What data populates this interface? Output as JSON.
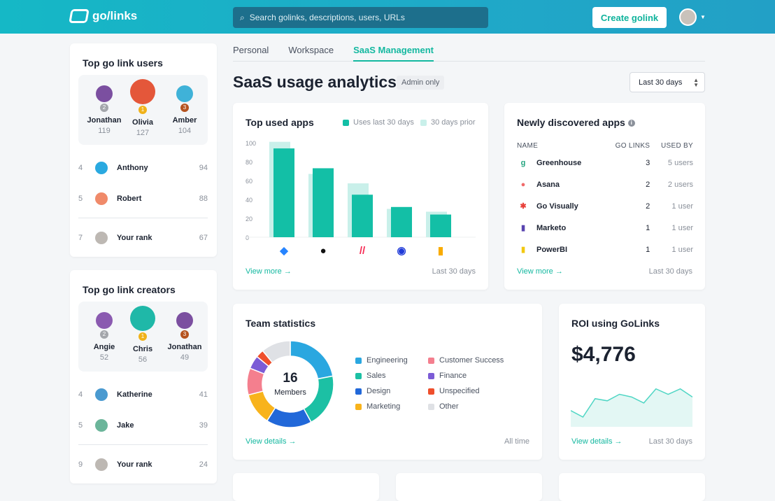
{
  "header": {
    "logo": "go/links",
    "search_placeholder": "Search golinks, descriptions, users, URLs",
    "create_label": "Create golink"
  },
  "top_users": {
    "title": "Top go link users",
    "podium": [
      {
        "name": "Jonathan",
        "score": "119",
        "rank": "2",
        "color": "#7b4fa0"
      },
      {
        "name": "Olivia",
        "score": "127",
        "rank": "1",
        "color": "#e4573a"
      },
      {
        "name": "Amber",
        "score": "104",
        "rank": "3",
        "color": "#3fb2d8"
      }
    ],
    "rows": [
      {
        "rank": "4",
        "name": "Anthony",
        "score": "94",
        "color": "#2aa9e0"
      },
      {
        "rank": "5",
        "name": "Robert",
        "score": "88",
        "color": "#f08a6a"
      }
    ],
    "you": {
      "rank": "7",
      "name": "Your rank",
      "score": "67",
      "color": "#bdb8b3"
    }
  },
  "top_creators": {
    "title": "Top go link creators",
    "podium": [
      {
        "name": "Angie",
        "score": "52",
        "rank": "2",
        "color": "#8a5ab0"
      },
      {
        "name": "Chris",
        "score": "56",
        "rank": "1",
        "color": "#1fb8a8"
      },
      {
        "name": "Jonathan",
        "score": "49",
        "rank": "3",
        "color": "#7b4fa0"
      }
    ],
    "rows": [
      {
        "rank": "4",
        "name": "Katherine",
        "score": "41",
        "color": "#4a9ad0"
      },
      {
        "rank": "5",
        "name": "Jake",
        "score": "39",
        "color": "#6bb59a"
      }
    ],
    "you": {
      "rank": "9",
      "name": "Your rank",
      "score": "24",
      "color": "#bdb8b3"
    }
  },
  "tabs": [
    "Personal",
    "Workspace",
    "SaaS Management"
  ],
  "page": {
    "title": "SaaS usage analytics",
    "badge": "Admin only",
    "range": "Last 30 days"
  },
  "top_apps": {
    "title": "Top used apps",
    "view_more": "View more →",
    "period": "Last 30 days"
  },
  "chart_data": [
    {
      "type": "bar",
      "title": "Top used apps",
      "categories": [
        "Jira",
        "GitHub",
        "Monday",
        "Loom",
        "Google Analytics"
      ],
      "series": [
        {
          "name": "Uses last 30 days",
          "values": [
            94,
            73,
            45,
            32,
            24
          ],
          "color": "#13bfa6"
        },
        {
          "name": "30 days prior",
          "values": [
            101,
            67,
            57,
            30,
            27
          ],
          "color": "#c9f0ea"
        }
      ],
      "ylim": [
        0,
        100
      ],
      "yticks": [
        0,
        20,
        40,
        60,
        80,
        100
      ],
      "legend": "top-right"
    },
    {
      "type": "pie",
      "title": "Team statistics",
      "center_value": "16",
      "center_label": "Members",
      "slices": [
        {
          "name": "Engineering",
          "value": 22,
          "color": "#2aa7e0"
        },
        {
          "name": "Sales",
          "value": 20,
          "color": "#1cc0a4"
        },
        {
          "name": "Design",
          "value": 17,
          "color": "#2168d9"
        },
        {
          "name": "Marketing",
          "value": 12,
          "color": "#f8b31c"
        },
        {
          "name": "Customer Success",
          "value": 10,
          "color": "#f47f8e"
        },
        {
          "name": "Finance",
          "value": 5,
          "color": "#7c5cd6"
        },
        {
          "name": "Unspecified",
          "value": 3,
          "color": "#ef4f2c"
        },
        {
          "name": "Other",
          "value": 11,
          "color": "#dfe1e5"
        }
      ]
    },
    {
      "type": "area",
      "title": "ROI using GoLinks",
      "values": [
        30,
        18,
        52,
        48,
        60,
        55,
        44,
        70,
        60,
        70,
        55
      ],
      "color": "#4fd6c4"
    }
  ],
  "new_apps": {
    "title": "Newly discovered apps",
    "headers": [
      "NAME",
      "GO LINKS",
      "USED BY"
    ],
    "rows": [
      {
        "name": "Greenhouse",
        "links": "3",
        "used": "5 users",
        "icon": "g",
        "color": "#24a47f"
      },
      {
        "name": "Asana",
        "links": "2",
        "used": "2 users",
        "icon": "●",
        "color": "#f06a6a"
      },
      {
        "name": "Go Visually",
        "links": "2",
        "used": "1 user",
        "icon": "✱",
        "color": "#e8403a"
      },
      {
        "name": "Marketo",
        "links": "1",
        "used": "1 user",
        "icon": "▮",
        "color": "#5944b0"
      },
      {
        "name": "PowerBI",
        "links": "1",
        "used": "1 user",
        "icon": "▮",
        "color": "#f2c811"
      }
    ],
    "view_more": "View more →",
    "period": "Last 30 days"
  },
  "team": {
    "title": "Team statistics",
    "view_details": "View details →",
    "period": "All time"
  },
  "roi": {
    "title": "ROI using GoLinks",
    "value": "$4,776",
    "view_details": "View details →",
    "period": "Last 30 days"
  }
}
